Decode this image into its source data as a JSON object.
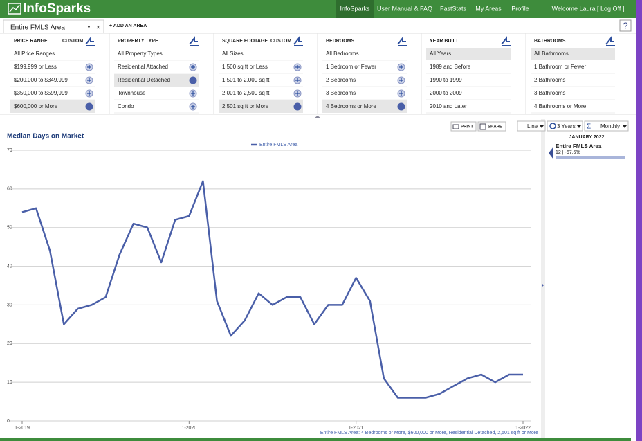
{
  "nav": {
    "logo": "InfoSparks",
    "items": [
      "InfoSparks",
      "User Manual & FAQ",
      "FastStats",
      "My Areas",
      "Profile"
    ],
    "active": 0,
    "welcome": "Welcome Laura [ Log Off ]"
  },
  "area_bar": {
    "area": "Entire FMLS Area",
    "add": "+ ADD AN AREA",
    "help": "?"
  },
  "filters": [
    {
      "title": "PRICE RANGE",
      "custom": "CUSTOM",
      "options": [
        "All Price Ranges",
        "$199,999 or Less",
        "$200,000 to $349,999",
        "$350,000 to $599,999",
        "$600,000 or More"
      ],
      "selected": 4,
      "icons": true
    },
    {
      "title": "PROPERTY TYPE",
      "options": [
        "All Property Types",
        "Residential Attached",
        "Residential Detached",
        "Townhouse",
        "Condo"
      ],
      "selected": 2,
      "icons": true
    },
    {
      "title": "SQUARE FOOTAGE",
      "custom": "CUSTOM",
      "options": [
        "All Sizes",
        "1,500 sq ft or Less",
        "1,501 to 2,000 sq ft",
        "2,001 to 2,500 sq ft",
        "2,501 sq ft or More"
      ],
      "selected": 4,
      "icons": true
    },
    {
      "title": "BEDROOMS",
      "options": [
        "All Bedrooms",
        "1 Bedroom or Fewer",
        "2 Bedrooms",
        "3 Bedrooms",
        "4 Bedrooms or More"
      ],
      "selected": 4,
      "icons": true
    },
    {
      "title": "YEAR BUILT",
      "options": [
        "All Years",
        "1989 and Before",
        "1990 to 1999",
        "2000 to 2009",
        "2010 and Later"
      ],
      "selected": 0,
      "icons": false
    },
    {
      "title": "BATHROOMS",
      "options": [
        "All Bathrooms",
        "1 Bathroom or Fewer",
        "2 Bathrooms",
        "3 Bathrooms",
        "4 Bathrooms or More"
      ],
      "selected": 0,
      "icons": false
    }
  ],
  "toolbar": {
    "print": "PRINT",
    "share": "SHARE",
    "chart_type": "Line",
    "range": "3 Years",
    "interval": "Monthly"
  },
  "side_panel": {
    "period": "JANUARY 2022",
    "area": "Entire FMLS Area",
    "stat": "12 | -67.6%"
  },
  "chart_data": {
    "type": "line",
    "title": "Median Days on Market",
    "footnote": "Entire FMLS Area: 4 Bedrooms or More, $600,000 or More, Residential Detached, 2,501 sq ft or More",
    "categories": [
      "1-2019",
      null,
      null,
      null,
      null,
      null,
      null,
      null,
      null,
      null,
      null,
      null,
      "1-2020",
      null,
      null,
      null,
      null,
      null,
      null,
      null,
      null,
      null,
      null,
      null,
      "1-2021",
      null,
      null,
      null,
      null,
      null,
      null,
      null,
      null,
      null,
      null,
      null,
      "1-2022"
    ],
    "series": [
      {
        "name": "Entire FMLS Area",
        "color": "#4a5fa8",
        "values": [
          54,
          55,
          44,
          25,
          29,
          30,
          32,
          43,
          51,
          50,
          41,
          52,
          53,
          62,
          31,
          22,
          26,
          33,
          30,
          32,
          32,
          25,
          30,
          30,
          37,
          31,
          11,
          6,
          6,
          6,
          7,
          9,
          11,
          12,
          10,
          12,
          12
        ]
      }
    ],
    "ylim": [
      0,
      70
    ],
    "yticks": [
      0,
      10,
      20,
      30,
      40,
      50,
      60,
      70
    ],
    "grid": true
  }
}
